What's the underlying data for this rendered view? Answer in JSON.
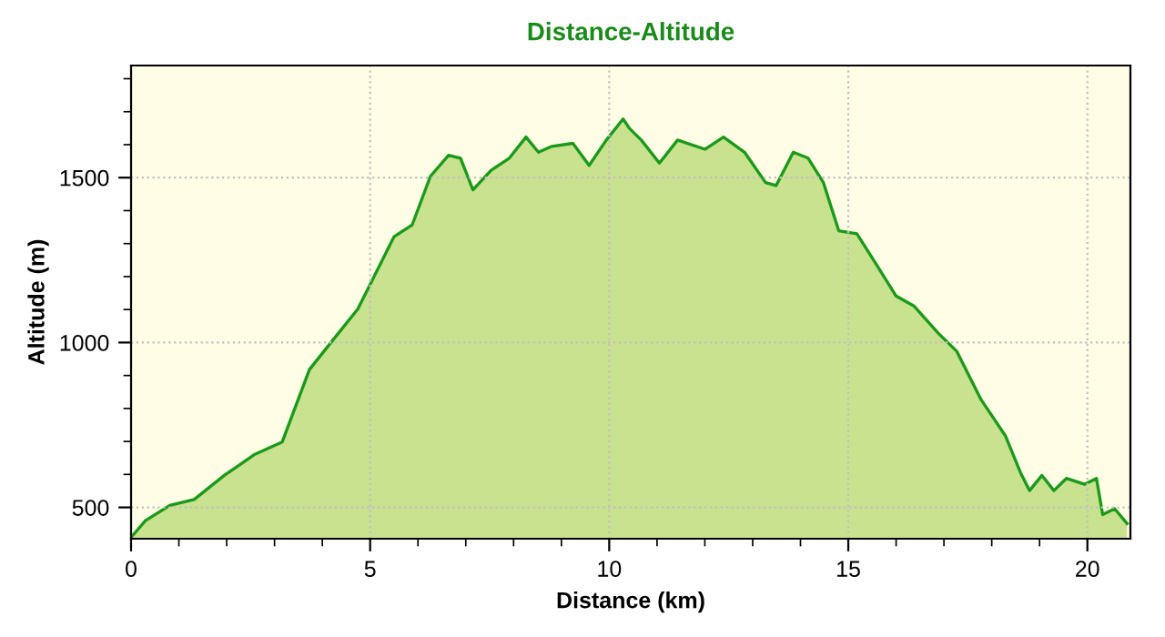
{
  "chart_data": {
    "type": "area",
    "title": "Distance-Altitude",
    "xlabel": "Distance (km)",
    "ylabel": "Altitude (m)",
    "x": [
      0.03,
      0.3,
      0.81,
      1.32,
      1.95,
      2.59,
      3.16,
      3.73,
      4.23,
      4.74,
      5.12,
      5.5,
      5.88,
      6.26,
      6.64,
      6.89,
      7.15,
      7.53,
      7.91,
      8.26,
      8.52,
      8.8,
      9.24,
      9.58,
      9.94,
      10.29,
      10.42,
      10.67,
      11.05,
      11.43,
      12.0,
      12.39,
      12.83,
      13.27,
      13.49,
      13.85,
      14.16,
      14.48,
      14.8,
      15.18,
      15.62,
      16.0,
      16.38,
      16.89,
      17.27,
      17.78,
      18.29,
      18.6,
      18.79,
      19.05,
      19.3,
      19.56,
      19.94,
      20.19,
      20.32,
      20.57,
      20.83
    ],
    "series": [
      {
        "color": "#1a9a1a",
        "values": [
          414,
          460,
          506,
          524,
          597,
          661,
          698,
          918,
          1009,
          1101,
          1211,
          1321,
          1357,
          1504,
          1568,
          1559,
          1463,
          1522,
          1559,
          1623,
          1577,
          1595,
          1604,
          1537,
          1614,
          1678,
          1650,
          1614,
          1544,
          1614,
          1586,
          1623,
          1577,
          1485,
          1476,
          1577,
          1559,
          1485,
          1339,
          1330,
          1229,
          1141,
          1110,
          1027,
          973,
          826,
          716,
          606,
          551,
          597,
          551,
          588,
          570,
          588,
          478,
          496,
          451
        ]
      }
    ],
    "xlim": [
      0,
      20.9
    ],
    "ylim": [
      405,
      1840
    ],
    "xticks": [
      0,
      {
        "value": 1,
        "label": null
      },
      {
        "value": 2,
        "label": null
      },
      {
        "value": 3,
        "label": null
      },
      {
        "value": 4,
        "label": null
      },
      5,
      {
        "value": 6,
        "label": null
      },
      {
        "value": 7,
        "label": null
      },
      {
        "value": 8,
        "label": null
      },
      {
        "value": 9,
        "label": null
      },
      10,
      {
        "value": 11,
        "label": null
      },
      {
        "value": 12,
        "label": null
      },
      {
        "value": 13,
        "label": null
      },
      {
        "value": 14,
        "label": null
      },
      15,
      {
        "value": 16,
        "label": null
      },
      {
        "value": 17,
        "label": null
      },
      {
        "value": 18,
        "label": null
      },
      {
        "value": 19,
        "label": null
      },
      20
    ],
    "yticks": [
      500,
      {
        "value": 600,
        "label": null
      },
      {
        "value": 700,
        "label": null
      },
      {
        "value": 800,
        "label": null
      },
      {
        "value": 900,
        "label": null
      },
      1000,
      {
        "value": 1100,
        "label": null
      },
      {
        "value": 1200,
        "label": null
      },
      {
        "value": 1300,
        "label": null
      },
      {
        "value": 1400,
        "label": null
      },
      1500,
      {
        "value": 1600,
        "label": null
      },
      {
        "value": 1700,
        "label": null
      },
      {
        "value": 1800,
        "label": null
      }
    ],
    "grid": true
  }
}
